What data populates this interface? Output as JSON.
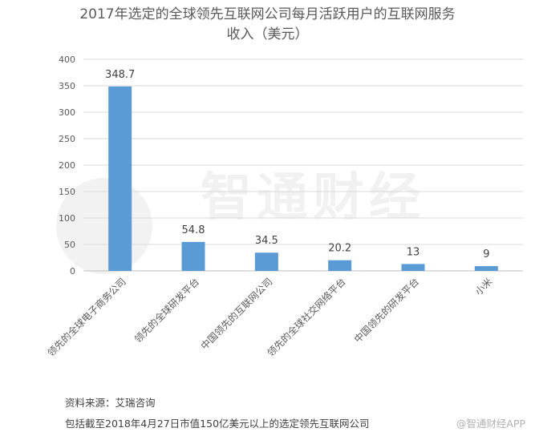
{
  "title_line1": "2017年选定的全球领先互联网公司每月活跃用户的互联网服务",
  "title_line2": "收入（美元）",
  "watermark": "智通财经",
  "source": "资料来源：艾瑞咨询",
  "note": "包括截至2018年4月27日市值150亿美元以上的选定领先互联网公司",
  "corner_mark": "@智通财经APP",
  "chart_data": {
    "type": "bar",
    "title": "2017年选定的全球领先互联网公司每月活跃用户的互联网服务收入（美元）",
    "categories": [
      "领先的全球电子商务公司",
      "领先的全球研发平台",
      "中国领先的互联网公司",
      "领先的全球社交网络平台",
      "中国领先的研发平台",
      "小米"
    ],
    "values": [
      348.7,
      54.8,
      34.5,
      20.2,
      13,
      9
    ],
    "data_labels": [
      "348.7",
      "54.8",
      "34.5",
      "20.2",
      "13",
      "9"
    ],
    "yticks": [
      0,
      50,
      100,
      150,
      200,
      250,
      300,
      350,
      400
    ],
    "ylim": [
      0,
      400
    ],
    "grid": true,
    "legend": "none",
    "bar_color": "#5b9bd5",
    "grid_color": "#d9d9d9",
    "axis_color": "#bfbfbf",
    "label_color": "#595959"
  }
}
